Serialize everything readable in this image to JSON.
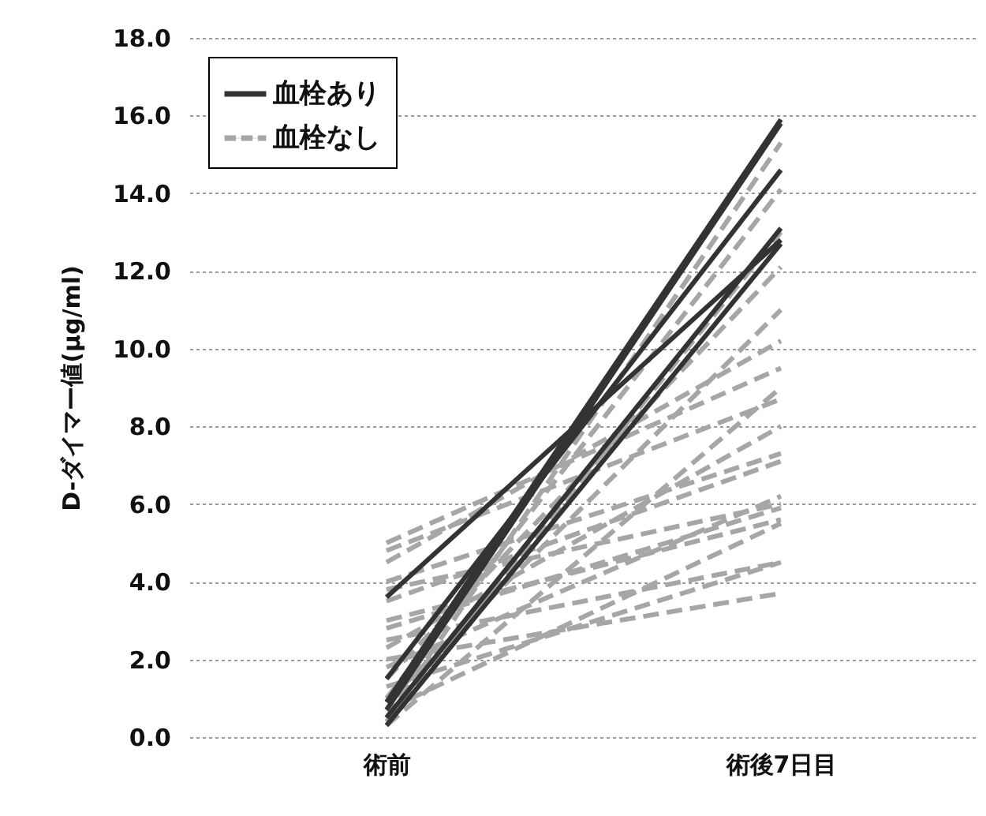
{
  "chart_data": {
    "type": "line",
    "ylabel": "D-ダイマー値(μg/ml)",
    "categories": [
      "術前",
      "術後7日目"
    ],
    "ylim": [
      0,
      18
    ],
    "yticks": [
      {
        "value": 0,
        "label": "0.0"
      },
      {
        "value": 2,
        "label": "2.0"
      },
      {
        "value": 4,
        "label": "4.0"
      },
      {
        "value": 6,
        "label": "6.0"
      },
      {
        "value": 8,
        "label": "8.0"
      },
      {
        "value": 10,
        "label": "10.0"
      },
      {
        "value": 12,
        "label": "12.0"
      },
      {
        "value": 14,
        "label": "14.0"
      },
      {
        "value": 16,
        "label": "16.0"
      },
      {
        "value": 18,
        "label": "18.0"
      }
    ],
    "grid": "y",
    "legend": "top left",
    "series": [
      {
        "name": "血栓なし",
        "color": "#a6a6a6",
        "line_style": "dashed",
        "values": [
          5.0,
          9.5
        ]
      },
      {
        "color": "#a6a6a6",
        "line_style": "dashed",
        "values": [
          4.8,
          8.7
        ]
      },
      {
        "color": "#a6a6a6",
        "line_style": "dashed",
        "values": [
          4.5,
          10.2
        ]
      },
      {
        "color": "#a6a6a6",
        "line_style": "dashed",
        "values": [
          4.0,
          7.3
        ]
      },
      {
        "color": "#a6a6a6",
        "line_style": "dashed",
        "values": [
          3.8,
          6.0
        ]
      },
      {
        "color": "#a6a6a6",
        "line_style": "dashed",
        "values": [
          3.5,
          7.1
        ]
      },
      {
        "color": "#a6a6a6",
        "line_style": "dashed",
        "values": [
          3.0,
          5.6
        ]
      },
      {
        "color": "#a6a6a6",
        "line_style": "dashed",
        "values": [
          2.8,
          5.9
        ]
      },
      {
        "color": "#a6a6a6",
        "line_style": "dashed",
        "values": [
          2.5,
          4.5
        ]
      },
      {
        "color": "#a6a6a6",
        "line_style": "dashed",
        "values": [
          2.3,
          8.0
        ]
      },
      {
        "color": "#a6a6a6",
        "line_style": "dashed",
        "values": [
          2.0,
          3.7
        ]
      },
      {
        "color": "#a6a6a6",
        "line_style": "dashed",
        "values": [
          1.8,
          6.2
        ]
      },
      {
        "color": "#a6a6a6",
        "line_style": "dashed",
        "values": [
          1.5,
          12.1
        ]
      },
      {
        "color": "#a6a6a6",
        "line_style": "dashed",
        "values": [
          1.3,
          4.5
        ]
      },
      {
        "color": "#a6a6a6",
        "line_style": "dashed",
        "values": [
          1.0,
          14.1
        ]
      },
      {
        "color": "#a6a6a6",
        "line_style": "dashed",
        "values": [
          0.9,
          11.0
        ]
      },
      {
        "color": "#a6a6a6",
        "line_style": "dashed",
        "values": [
          0.7,
          5.5
        ]
      },
      {
        "color": "#a6a6a6",
        "line_style": "dashed",
        "values": [
          0.5,
          15.3
        ]
      },
      {
        "color": "#a6a6a6",
        "line_style": "dashed",
        "values": [
          0.4,
          13.0
        ]
      },
      {
        "color": "#a6a6a6",
        "line_style": "dashed",
        "values": [
          0.3,
          9.0
        ]
      },
      {
        "name": "血栓あり",
        "color": "#333333",
        "line_style": "solid",
        "values": [
          3.6,
          12.8
        ]
      },
      {
        "color": "#333333",
        "line_style": "solid",
        "values": [
          1.5,
          14.6
        ]
      },
      {
        "color": "#333333",
        "line_style": "solid",
        "values": [
          0.9,
          15.9
        ]
      },
      {
        "color": "#333333",
        "line_style": "solid",
        "values": [
          0.5,
          13.1
        ]
      },
      {
        "color": "#333333",
        "line_style": "solid",
        "values": [
          0.3,
          12.7
        ]
      },
      {
        "color": "#333333",
        "line_style": "solid",
        "values": [
          0.7,
          15.8
        ]
      }
    ]
  }
}
